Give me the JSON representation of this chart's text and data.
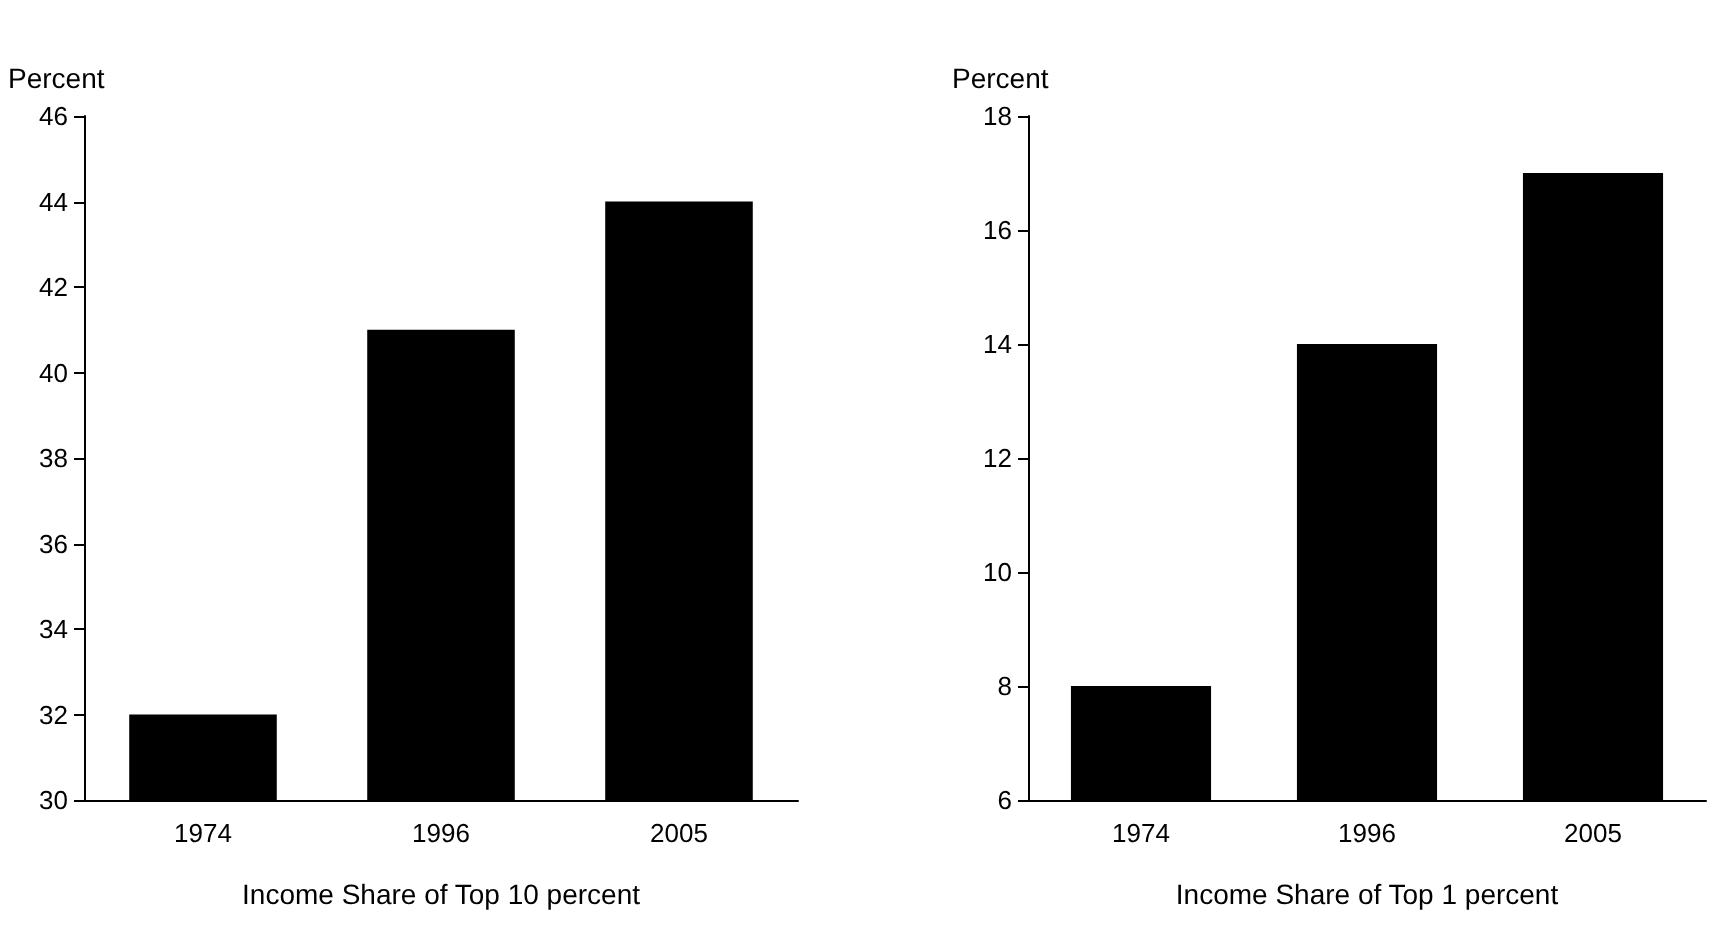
{
  "chart_data": [
    {
      "type": "bar",
      "xlabel": "Income Share of Top 10 percent",
      "ylabel": "Percent",
      "categories": [
        "1974",
        "1996",
        "2005"
      ],
      "values": [
        32,
        41,
        44
      ],
      "color": "#000000",
      "ylim": [
        30,
        46
      ],
      "yticks": [
        30,
        32,
        34,
        36,
        38,
        40,
        42,
        44,
        46
      ]
    },
    {
      "type": "bar",
      "xlabel": "Income Share of Top 1 percent",
      "ylabel": "Percent",
      "categories": [
        "1974",
        "1996",
        "2005"
      ],
      "values": [
        8,
        14,
        17
      ],
      "color": "#000000",
      "ylim": [
        6,
        18
      ],
      "yticks": [
        6,
        8,
        10,
        12,
        14,
        16,
        18
      ]
    }
  ]
}
